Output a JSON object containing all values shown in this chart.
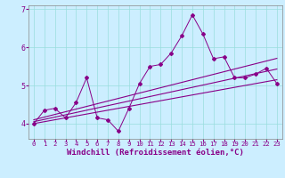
{
  "title": "",
  "xlabel": "Windchill (Refroidissement éolien,°C)",
  "bg_color": "#cceeff",
  "line_color": "#880088",
  "x_data": [
    0,
    1,
    2,
    3,
    4,
    5,
    6,
    7,
    8,
    9,
    10,
    11,
    12,
    13,
    14,
    15,
    16,
    17,
    18,
    19,
    20,
    21,
    22,
    23
  ],
  "y_main": [
    4.0,
    4.35,
    4.4,
    4.15,
    4.55,
    5.2,
    4.15,
    4.1,
    3.8,
    4.4,
    5.05,
    5.5,
    5.55,
    5.85,
    6.3,
    6.85,
    6.35,
    5.7,
    5.75,
    5.2,
    5.2,
    5.3,
    5.45,
    5.05
  ],
  "y_reg1": [
    4.0,
    4.05,
    4.1,
    4.15,
    4.2,
    4.25,
    4.3,
    4.35,
    4.4,
    4.45,
    4.5,
    4.55,
    4.6,
    4.65,
    4.7,
    4.75,
    4.8,
    4.85,
    4.9,
    4.95,
    5.0,
    5.05,
    5.1,
    5.15
  ],
  "y_reg2": [
    4.1,
    4.17,
    4.24,
    4.31,
    4.38,
    4.45,
    4.52,
    4.59,
    4.66,
    4.73,
    4.8,
    4.87,
    4.94,
    5.01,
    5.08,
    5.15,
    5.22,
    5.29,
    5.36,
    5.43,
    5.5,
    5.57,
    5.64,
    5.71
  ],
  "y_reg3": [
    4.05,
    4.11,
    4.17,
    4.23,
    4.29,
    4.35,
    4.41,
    4.47,
    4.53,
    4.59,
    4.65,
    4.71,
    4.77,
    4.83,
    4.89,
    4.95,
    5.01,
    5.07,
    5.13,
    5.19,
    5.25,
    5.31,
    5.37,
    5.43
  ],
  "ylim": [
    3.6,
    7.1
  ],
  "xlim": [
    -0.5,
    23.5
  ],
  "yticks": [
    4,
    5,
    6,
    7
  ],
  "xticks": [
    0,
    1,
    2,
    3,
    4,
    5,
    6,
    7,
    8,
    9,
    10,
    11,
    12,
    13,
    14,
    15,
    16,
    17,
    18,
    19,
    20,
    21,
    22,
    23
  ],
  "grid_color": "#99dddd",
  "xlabel_fontsize": 6.5,
  "tick_fontsize": 6.0,
  "label_color": "#880088",
  "axis_bg": "#cceeff",
  "spine_color": "#888888"
}
